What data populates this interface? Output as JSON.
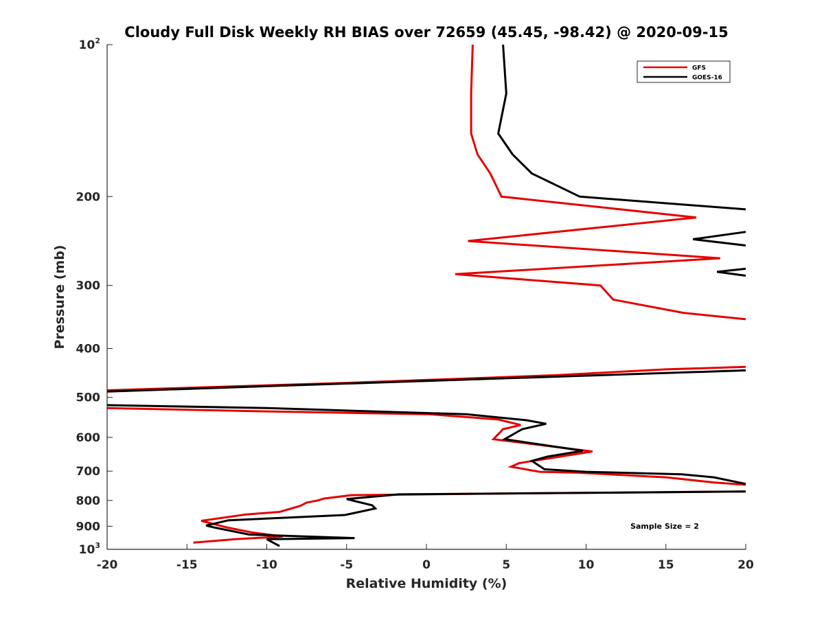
{
  "chart_data": {
    "type": "line",
    "title": "Cloudy Full Disk Weekly RH BIAS over 72659 (45.45, -98.42) @ 2020-09-15",
    "xlabel": "Relative Humidity (%)",
    "ylabel": "Pressure (mb)",
    "xlim": [
      -20,
      20
    ],
    "ylim": [
      100,
      1000
    ],
    "y_scale": "log",
    "y_reversed": true,
    "grid": false,
    "legend_position": "top-right",
    "annotation": "Sample Size = 2",
    "x_ticks": [
      {
        "value": -20,
        "label": "-20"
      },
      {
        "value": -15,
        "label": "-15"
      },
      {
        "value": -10,
        "label": "-10"
      },
      {
        "value": -5,
        "label": "-5"
      },
      {
        "value": 0,
        "label": "0"
      },
      {
        "value": 5,
        "label": "5"
      },
      {
        "value": 10,
        "label": "10"
      },
      {
        "value": 15,
        "label": "15"
      },
      {
        "value": 20,
        "label": "20"
      }
    ],
    "y_ticks": [
      {
        "value": 100,
        "base": "10",
        "exp": "2"
      },
      {
        "value": 200,
        "base": "200",
        "exp": ""
      },
      {
        "value": 300,
        "base": "300",
        "exp": ""
      },
      {
        "value": 400,
        "base": "400",
        "exp": ""
      },
      {
        "value": 500,
        "base": "500",
        "exp": ""
      },
      {
        "value": 600,
        "base": "600",
        "exp": ""
      },
      {
        "value": 700,
        "base": "700",
        "exp": ""
      },
      {
        "value": 800,
        "base": "800",
        "exp": ""
      },
      {
        "value": 900,
        "base": "900",
        "exp": ""
      },
      {
        "value": 1000,
        "base": "10",
        "exp": "3"
      }
    ],
    "series": [
      {
        "name": "GFS",
        "color": "#e60000",
        "points": [
          [
            2.9,
            100
          ],
          [
            2.8,
            125
          ],
          [
            2.8,
            150
          ],
          [
            3.2,
            165
          ],
          [
            4.0,
            180
          ],
          [
            4.7,
            200
          ],
          [
            16.9,
            220
          ],
          [
            2.6,
            245
          ],
          [
            18.4,
            265
          ],
          [
            1.8,
            285
          ],
          [
            10.9,
            300
          ],
          [
            11.7,
            320
          ],
          [
            16.1,
            340
          ],
          [
            20.0,
            350
          ],
          null,
          [
            20.0,
            435
          ],
          [
            15.0,
            440
          ],
          [
            8.0,
            452
          ],
          [
            -5.0,
            468
          ],
          [
            -20.0,
            484
          ],
          null,
          [
            -20.0,
            525
          ],
          [
            -10.0,
            533
          ],
          [
            0.2,
            540
          ],
          [
            4.5,
            553
          ],
          [
            5.9,
            567
          ],
          [
            4.8,
            578
          ],
          [
            4.2,
            605
          ],
          [
            10.4,
            640
          ],
          [
            5.8,
            675
          ],
          [
            5.3,
            686
          ],
          [
            7.1,
            702
          ],
          [
            9.5,
            705
          ],
          [
            15.0,
            720
          ],
          [
            18.0,
            737
          ],
          [
            20.0,
            745
          ],
          null,
          [
            20.0,
            768
          ],
          [
            5.0,
            775
          ],
          [
            -4.7,
            781
          ],
          [
            -6.4,
            793
          ],
          [
            -6.8,
            800
          ],
          [
            -7.5,
            808
          ],
          [
            -7.9,
            820
          ],
          [
            -9.2,
            843
          ],
          [
            -11.3,
            853
          ],
          [
            -14.1,
            878
          ],
          [
            -12.5,
            905
          ],
          [
            -11.0,
            925
          ],
          [
            -9.0,
            943
          ],
          [
            -12.0,
            955
          ],
          [
            -14.6,
            970
          ]
        ]
      },
      {
        "name": "GOES-16",
        "color": "#000000",
        "points": [
          [
            4.8,
            100
          ],
          [
            5.0,
            125
          ],
          [
            4.5,
            150
          ],
          [
            5.4,
            165
          ],
          [
            6.6,
            180
          ],
          [
            9.6,
            200
          ],
          [
            20.0,
            212
          ],
          null,
          [
            20.0,
            235
          ],
          [
            16.7,
            243
          ],
          [
            20.0,
            250
          ],
          null,
          [
            20.0,
            278
          ],
          [
            18.2,
            282
          ],
          [
            20.0,
            287
          ],
          null,
          [
            20.0,
            442
          ],
          [
            8.0,
            455
          ],
          [
            -10.0,
            475
          ],
          [
            -20.0,
            487
          ],
          null,
          [
            -20.0,
            518
          ],
          [
            -10.0,
            525
          ],
          [
            2.5,
            540
          ],
          [
            6.3,
            555
          ],
          [
            7.5,
            564
          ],
          [
            6.0,
            578
          ],
          [
            4.9,
            605
          ],
          [
            9.8,
            638
          ],
          [
            7.6,
            655
          ],
          [
            6.6,
            668
          ],
          [
            7.4,
            694
          ],
          [
            10.0,
            702
          ],
          [
            16.0,
            710
          ],
          [
            18.0,
            720
          ],
          [
            20.0,
            742
          ],
          null,
          [
            20.0,
            768
          ],
          [
            10.0,
            773
          ],
          [
            -1.7,
            778
          ],
          [
            -5.0,
            795
          ],
          [
            -3.4,
            818
          ],
          [
            -3.2,
            830
          ],
          [
            -5.1,
            855
          ],
          [
            -12.4,
            876
          ],
          [
            -13.8,
            897
          ],
          [
            -13.3,
            905
          ],
          [
            -11.1,
            935
          ],
          [
            -4.5,
            950
          ],
          [
            -10.0,
            955
          ],
          [
            -9.2,
            985
          ]
        ]
      }
    ]
  }
}
